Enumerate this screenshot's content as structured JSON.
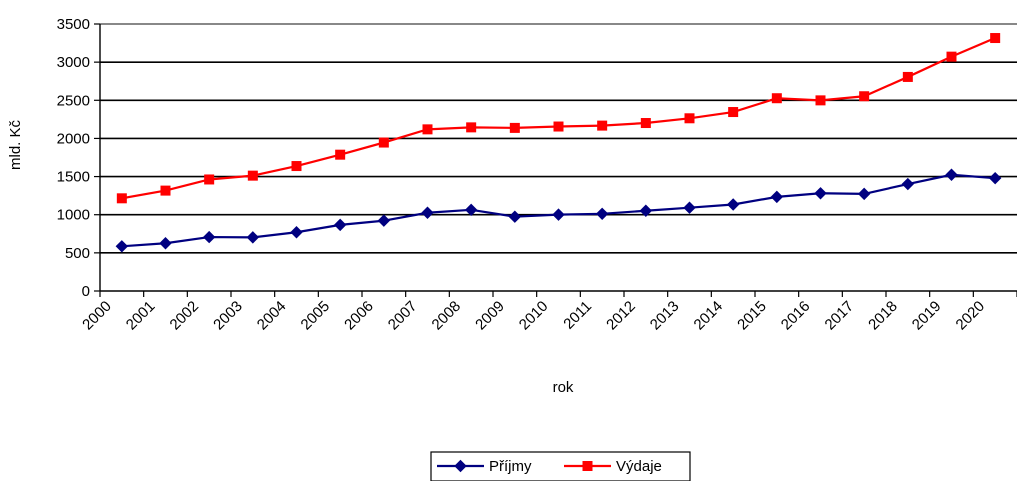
{
  "chart_data": {
    "type": "line",
    "title": "",
    "xlabel": "rok",
    "ylabel": "mld. Kč",
    "categories": [
      "2000",
      "2001",
      "2002",
      "2003",
      "2004",
      "2005",
      "2006",
      "2007",
      "2008",
      "2009",
      "2010",
      "2011",
      "2012",
      "2013",
      "2014",
      "2015",
      "2016",
      "2017",
      "2018",
      "2019",
      "2020"
    ],
    "ylim": [
      0,
      3500
    ],
    "yticks": [
      0,
      500,
      1000,
      1500,
      2000,
      2500,
      3000,
      3500
    ],
    "grid": true,
    "legend_position": "bottom",
    "series": [
      {
        "name": "Příjmy",
        "color": "#000080",
        "marker": "diamond",
        "values": [
          586,
          626,
          707,
          703,
          770,
          867,
          922,
          1026,
          1064,
          974,
          1001,
          1012,
          1052,
          1092,
          1134,
          1234,
          1281,
          1273,
          1402,
          1524,
          1479
        ]
      },
      {
        "name": "Výdaje",
        "color": "#ff0000",
        "marker": "square",
        "values": [
          1215,
          1316,
          1462,
          1512,
          1638,
          1787,
          1946,
          2119,
          2145,
          2138,
          2156,
          2168,
          2202,
          2264,
          2346,
          2527,
          2499,
          2553,
          2806,
          3072,
          3316
        ]
      }
    ]
  }
}
